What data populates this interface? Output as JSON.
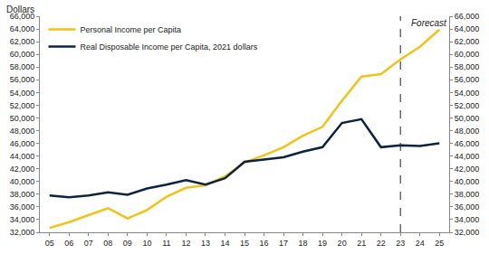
{
  "chart_data": {
    "type": "line",
    "ylabel": "Dollars",
    "categories": [
      "05",
      "06",
      "07",
      "08",
      "09",
      "10",
      "11",
      "12",
      "13",
      "14",
      "15",
      "16",
      "17",
      "18",
      "19",
      "20",
      "21",
      "22",
      "23",
      "24",
      "25"
    ],
    "series": [
      {
        "name": "Personal Income per Capita",
        "color": "#f2c318",
        "values": [
          32700,
          33600,
          34700,
          35800,
          34200,
          35500,
          37600,
          39000,
          39400,
          40800,
          43000,
          44100,
          45400,
          47200,
          48600,
          52700,
          56500,
          56900,
          59200,
          61200,
          63900
        ]
      },
      {
        "name": "Real Disposable Income per Capita, 2021 dollars",
        "color": "#0e2340",
        "axis": "y2",
        "values": [
          37800,
          37500,
          37800,
          38300,
          37900,
          38900,
          39500,
          40200,
          39500,
          40500,
          43100,
          43500,
          43800,
          44700,
          45400,
          49200,
          49800,
          45400,
          45700,
          45600,
          46000
        ]
      }
    ],
    "ylim": [
      32000,
      66000
    ],
    "yticks": [
      {
        "value": 32000,
        "label": "32,000"
      },
      {
        "value": 34000,
        "label": "34,000"
      },
      {
        "value": 36000,
        "label": "36,000"
      },
      {
        "value": 38000,
        "label": "38,000"
      },
      {
        "value": 40000,
        "label": "40,000"
      },
      {
        "value": 42000,
        "label": "42,000"
      },
      {
        "value": 44000,
        "label": "44,000"
      },
      {
        "value": 46000,
        "label": "46,000"
      },
      {
        "value": 48000,
        "label": "48,000"
      },
      {
        "value": 50000,
        "label": "50,000"
      },
      {
        "value": 52000,
        "label": "52,000"
      },
      {
        "value": 54000,
        "label": "54,000"
      },
      {
        "value": 56000,
        "label": "56,000"
      },
      {
        "value": 58000,
        "label": "58,000"
      },
      {
        "value": 60000,
        "label": "60,000"
      },
      {
        "value": 62000,
        "label": "62,000"
      },
      {
        "value": 64000,
        "label": "64,000"
      },
      {
        "value": 66000,
        "label": "66,000"
      }
    ],
    "y2lim": [
      32000,
      66000
    ],
    "y2ticks": [
      {
        "value": 32000,
        "label": "32,000"
      },
      {
        "value": 34000,
        "label": "34,000"
      },
      {
        "value": 36000,
        "label": "36,000"
      },
      {
        "value": 38000,
        "label": "38,000"
      },
      {
        "value": 40000,
        "label": "40,000"
      },
      {
        "value": 42000,
        "label": "42,000"
      },
      {
        "value": 44000,
        "label": "44,000"
      },
      {
        "value": 46000,
        "label": "46,000"
      },
      {
        "value": 48000,
        "label": "48,000"
      },
      {
        "value": 50000,
        "label": "50,000"
      },
      {
        "value": 52000,
        "label": "52,000"
      },
      {
        "value": 54000,
        "label": "54,000"
      },
      {
        "value": 56000,
        "label": "56,000"
      },
      {
        "value": 58000,
        "label": "58,000"
      },
      {
        "value": 60000,
        "label": "60,000"
      },
      {
        "value": 62000,
        "label": "62,000"
      },
      {
        "value": 64000,
        "label": "64,000"
      },
      {
        "value": 66000,
        "label": "66,000"
      }
    ],
    "annotations": [
      {
        "text": "Forecast",
        "x": "23"
      }
    ],
    "grid": false,
    "legend": "upper left"
  }
}
